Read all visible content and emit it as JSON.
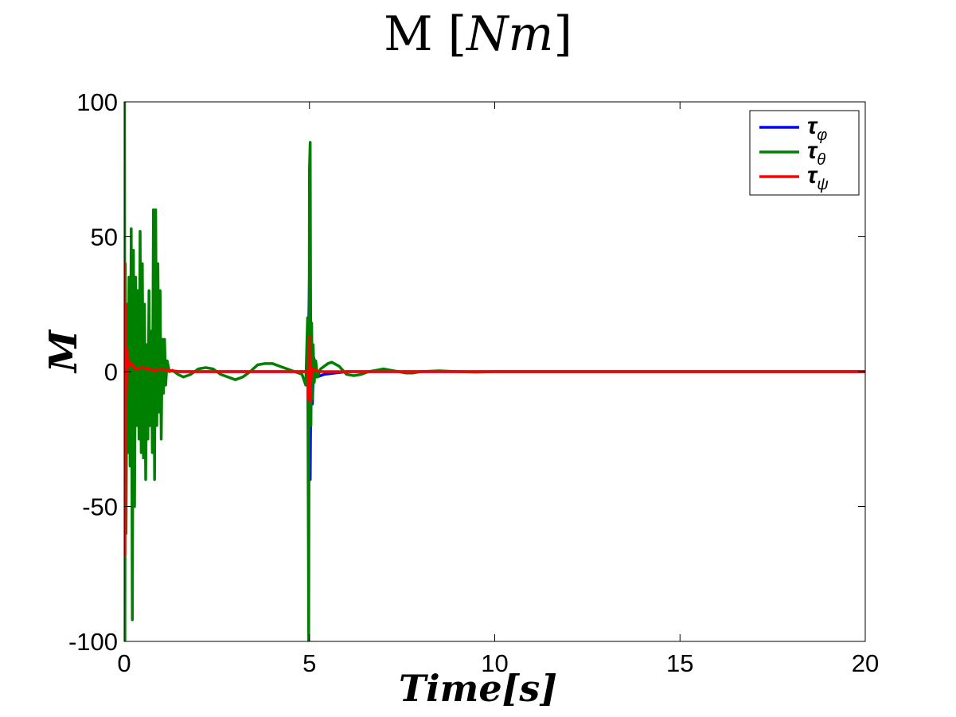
{
  "chart_data": {
    "type": "line",
    "title_main": "M",
    "title_unit": "Nm",
    "xlabel_main": "Time",
    "xlabel_unit": "s",
    "ylabel": "M",
    "xlim": [
      0,
      20
    ],
    "ylim": [
      -100,
      100
    ],
    "xticks": [
      "0",
      "5",
      "10",
      "15",
      "20"
    ],
    "yticks": [
      "100",
      "50",
      "0",
      "-50",
      "-100"
    ],
    "grid": false,
    "legend_position": "top-right",
    "legend": [
      {
        "symbol": "τ",
        "sub": "φ",
        "color": "#0000ff"
      },
      {
        "symbol": "τ",
        "sub": "θ",
        "color": "#008000"
      },
      {
        "symbol": "τ",
        "sub": "ψ",
        "color": "#ff0000"
      }
    ],
    "series": [
      {
        "color": "#0000ff",
        "x": [
          0,
          0.02,
          0.04,
          0.08,
          0.15,
          0.3,
          0.6,
          1.0,
          1.5,
          2.5,
          3.5,
          4.5,
          4.96,
          5.0,
          5.02,
          5.05,
          5.08,
          5.12,
          5.2,
          5.4,
          6.0,
          7.0,
          10,
          15,
          20
        ],
        "values": [
          0,
          -20,
          15,
          -5,
          3,
          1,
          0,
          0.5,
          0,
          0,
          0,
          0,
          0,
          35,
          -40,
          18,
          -12,
          5,
          -2,
          -1,
          0,
          0,
          0,
          0,
          0
        ]
      },
      {
        "color": "#008000",
        "x": [
          0,
          0.01,
          0.02,
          0.03,
          0.05,
          0.08,
          0.1,
          0.13,
          0.16,
          0.19,
          0.22,
          0.25,
          0.28,
          0.31,
          0.34,
          0.37,
          0.4,
          0.43,
          0.46,
          0.49,
          0.52,
          0.55,
          0.58,
          0.61,
          0.64,
          0.67,
          0.7,
          0.73,
          0.76,
          0.79,
          0.82,
          0.85,
          0.88,
          0.91,
          0.94,
          0.97,
          1.0,
          1.03,
          1.06,
          1.09,
          1.12,
          1.16,
          1.22,
          1.3,
          1.45,
          1.6,
          1.8,
          2.0,
          2.2,
          2.4,
          2.6,
          2.8,
          3.0,
          3.2,
          3.4,
          3.6,
          3.8,
          4.0,
          4.2,
          4.4,
          4.6,
          4.8,
          4.9,
          4.95,
          4.98,
          5.0,
          5.02,
          5.04,
          5.06,
          5.08,
          5.1,
          5.13,
          5.17,
          5.22,
          5.3,
          5.4,
          5.5,
          5.6,
          5.8,
          6.0,
          6.2,
          6.4,
          6.6,
          6.8,
          7.0,
          7.2,
          7.4,
          7.6,
          7.8,
          8.0,
          8.5,
          9.0,
          9.5,
          10,
          12,
          15,
          20
        ],
        "values": [
          0,
          100,
          -100,
          40,
          -60,
          25,
          -30,
          35,
          -35,
          53,
          -92,
          45,
          -50,
          35,
          -20,
          30,
          -25,
          52,
          -30,
          40,
          -32,
          25,
          -40,
          10,
          -25,
          30,
          -20,
          15,
          -30,
          60,
          -40,
          60,
          -20,
          40,
          -15,
          30,
          -25,
          12,
          -8,
          12,
          -5,
          4,
          0,
          0.5,
          -1,
          -2,
          -1,
          1,
          1.5,
          1,
          -1,
          -2,
          -3,
          -2,
          0,
          2.5,
          3,
          3,
          2,
          1,
          0,
          -1,
          -5,
          20,
          -100,
          75,
          85,
          -20,
          18,
          -10,
          10,
          -4,
          4,
          -2,
          1,
          2,
          3,
          3.5,
          2,
          -1,
          -1.5,
          -1,
          0,
          0.5,
          1,
          0.5,
          0,
          -0.5,
          -0.5,
          0,
          0.3,
          0,
          -0.2,
          0,
          0,
          0,
          0
        ]
      },
      {
        "color": "#ff0000",
        "x": [
          0,
          0.01,
          0.02,
          0.03,
          0.05,
          0.08,
          0.12,
          0.2,
          0.3,
          0.5,
          0.8,
          1.0,
          1.5,
          2.0,
          4.96,
          4.98,
          5.0,
          5.01,
          5.02,
          5.04,
          5.08,
          5.15,
          5.3,
          6,
          10,
          15,
          20
        ],
        "values": [
          0,
          40,
          -68,
          25,
          -10,
          8,
          2,
          3,
          1,
          1.5,
          0.5,
          0.8,
          0,
          0,
          0,
          -10,
          13,
          -11,
          5,
          -3,
          1,
          0.5,
          0,
          0,
          0,
          0,
          0
        ]
      }
    ]
  }
}
